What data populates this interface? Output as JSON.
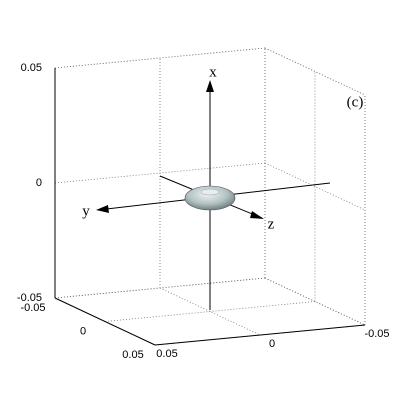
{
  "chart_data": {
    "type": "surface3d",
    "annotation": "(c)",
    "axis_labels": {
      "x": "x",
      "y": "y",
      "z": "z"
    },
    "xlim": [
      0.05,
      -0.05
    ],
    "xticks": [
      0.05,
      0,
      -0.05
    ],
    "ylim": [
      -0.05,
      0.05
    ],
    "yticks": [
      -0.05,
      0,
      0.05
    ],
    "zlim": [
      -0.05,
      0.05
    ],
    "zticks": [
      -0.05,
      0,
      0.05
    ],
    "grid": true,
    "color": "#b3c2c2"
  }
}
